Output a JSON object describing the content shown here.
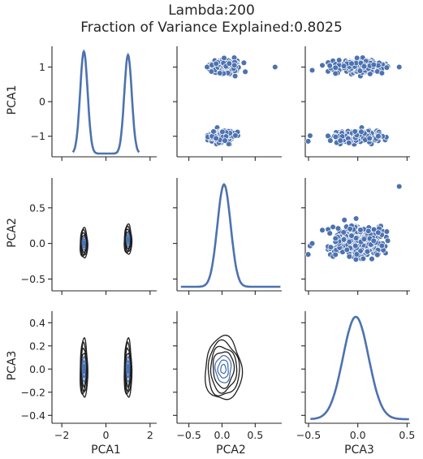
{
  "title_lines": [
    "Lambda:200",
    "Fraction of Variance Explained:0.8025"
  ],
  "colors": {
    "primary": "#4c72b0",
    "text": "#262626",
    "contour_dark": "#1f1f1f"
  },
  "chart_data": {
    "type": "pairplot",
    "variables": [
      "PCA1",
      "PCA2",
      "PCA3"
    ],
    "diagonal": "kde",
    "upper": "scatter",
    "lower": "kde-contour",
    "axes": {
      "PCA1": {
        "range": [
          -2.3,
          2.3
        ],
        "ticks": [
          -2,
          0,
          2
        ],
        "row_range": [
          -1.5,
          1.6
        ],
        "row_ticks": [
          -1,
          0,
          1
        ]
      },
      "PCA2": {
        "range": [
          -0.63,
          0.9
        ],
        "ticks": [
          -0.5,
          0.0,
          0.5
        ],
        "tick_labels": [
          "−0.5",
          "0.0",
          "0.5"
        ],
        "row_range": [
          -0.62,
          0.92
        ],
        "row_ticks": [
          -0.5,
          0.0,
          0.5
        ],
        "row_tick_labels": [
          "−0.5",
          "0.0",
          "0.5"
        ]
      },
      "PCA3": {
        "range": [
          -0.5,
          0.53
        ],
        "ticks": [
          -0.5,
          0.0,
          0.5
        ],
        "tick_labels": [
          "−0.5",
          "0.0",
          "0.5"
        ],
        "row_range": [
          -0.44,
          0.5
        ],
        "row_ticks": [
          -0.4,
          -0.2,
          0.0,
          0.2,
          0.4
        ],
        "row_tick_labels": [
          "−0.4",
          "−0.2",
          "0.0",
          "0.2",
          "0.4"
        ]
      }
    },
    "pca1_tick_labels": [
      "−2",
      "0",
      "2"
    ],
    "pca1_row_tick_labels": [
      "−1",
      "0",
      "1"
    ],
    "clusters": [
      {
        "PCA1": -1.0,
        "PCA1_sd": 0.09,
        "PCA2": 0.0,
        "PCA2_sd": 0.1,
        "PCA3": 0.0,
        "PCA3_sd": 0.12
      },
      {
        "PCA1": 1.0,
        "PCA1_sd": 0.09,
        "PCA2": 0.05,
        "PCA2_sd": 0.1,
        "PCA3": 0.0,
        "PCA3_sd": 0.12
      }
    ],
    "outlier": {
      "PCA1": 1.0,
      "PCA2": 0.8,
      "PCA3": 0.42
    },
    "kde_peaks": {
      "PCA1": [
        [
          -1.0,
          1.45
        ],
        [
          1.0,
          1.35
        ]
      ],
      "PCA2_peak": 0.03,
      "PCA3_peak": -0.02
    }
  }
}
